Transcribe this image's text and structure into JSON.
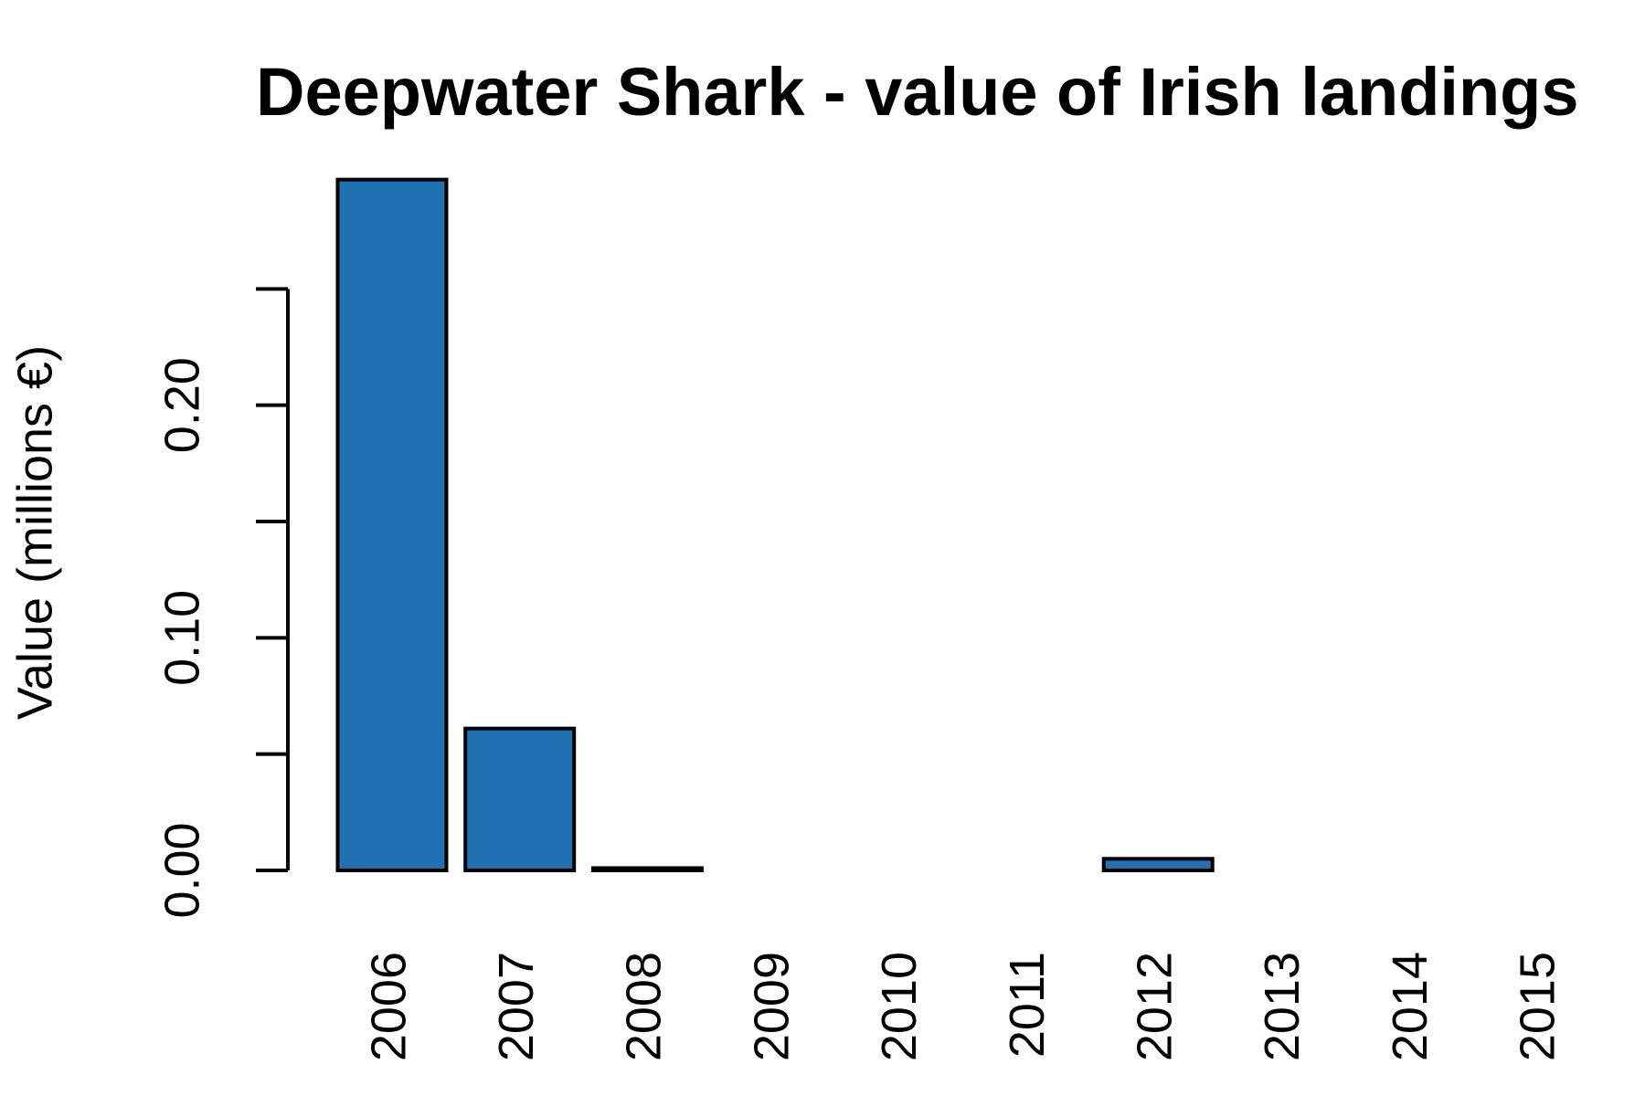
{
  "chart_data": {
    "type": "bar",
    "title": "Deepwater Shark - value of Irish landings",
    "y_label": "Value (millions €)",
    "categories": [
      "2006",
      "2007",
      "2008",
      "2009",
      "2010",
      "2011",
      "2012",
      "2013",
      "2014",
      "2015"
    ],
    "values": [
      0.297,
      0.061,
      0.001,
      null,
      null,
      null,
      0.005,
      null,
      null,
      null
    ],
    "color": "#2271b2",
    "ylim": [
      0,
      0.3
    ],
    "yticks": [
      {
        "value": 0,
        "label": "0.00"
      },
      {
        "value": 0.1,
        "label": "0.10"
      },
      {
        "value": 0.2,
        "label": "0.20"
      }
    ],
    "yminorticks": [
      0.05,
      0.15,
      0.25
    ]
  }
}
